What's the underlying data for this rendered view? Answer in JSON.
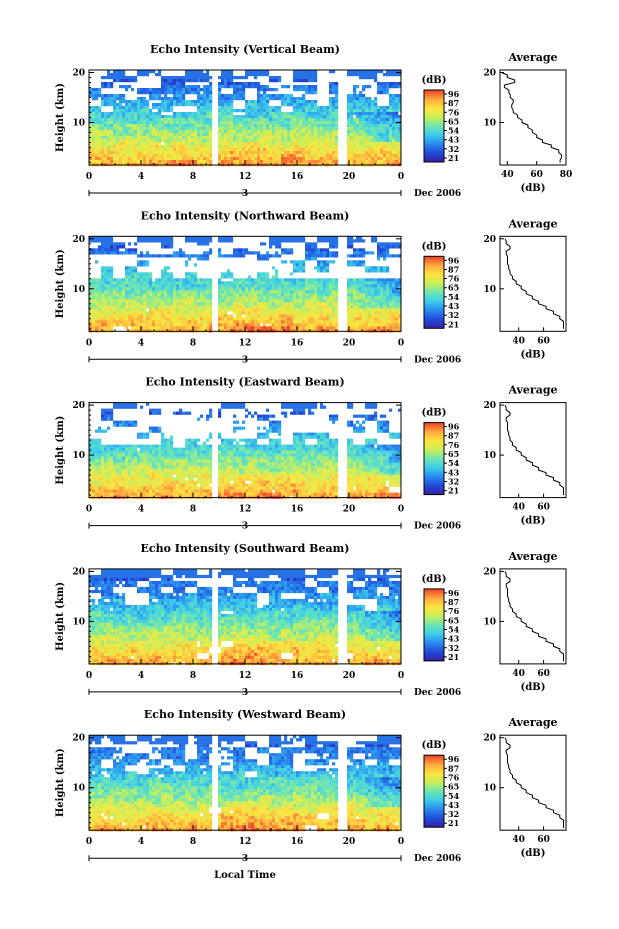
{
  "figure": {
    "xlabel": "Local Time",
    "date_label": "Dec 2006",
    "day_label": "3",
    "height_label": "Height (km)",
    "colorbar_unit": "(dB)",
    "average_title": "Average",
    "average_xlabel": "(dB)"
  },
  "chart_data": [
    {
      "type": "heatmap",
      "title": "Echo Intensity (Vertical Beam)",
      "xlabel": "Local Time",
      "ylabel": "Height (km)",
      "x_ticks": [
        "0",
        "4",
        "8",
        "12",
        "16",
        "20",
        "0"
      ],
      "x_range": [
        0,
        24
      ],
      "y_ticks": [
        "20",
        "10"
      ],
      "y_range": [
        1.5,
        20.5
      ],
      "gaps_hours": [
        [
          9.45,
          9.75
        ],
        [
          19.2,
          19.6
        ]
      ],
      "colorbar": {
        "unit": "(dB)",
        "ticks": [
          "96",
          "87",
          "76",
          "65",
          "54",
          "43",
          "32",
          "21"
        ],
        "range": [
          21,
          98
        ]
      },
      "profile": {
        "height_km": [
          2,
          3,
          4,
          5,
          6,
          7,
          8,
          9,
          10,
          11,
          12,
          13,
          14,
          15,
          16,
          17,
          18,
          19,
          20
        ],
        "average_db": [
          76,
          77,
          75,
          70,
          64,
          60,
          57,
          54,
          50,
          47,
          44,
          43,
          44,
          42,
          41,
          38,
          45,
          40,
          36
        ],
        "xlim": [
          35,
          80
        ],
        "x_ticks": [
          "40",
          "60",
          "80"
        ],
        "y_ticks": [
          "20",
          "10"
        ]
      },
      "scene": {
        "clear_top": 0.1,
        "clear_top_peak": 0.15,
        "band": 0.62,
        "band_alt": 17,
        "gap_bot": 13,
        "gap_top": 15.5,
        "floor_gap": 0.04
      }
    },
    {
      "type": "heatmap",
      "title": "Echo Intensity (Northward Beam)",
      "xlabel": "Local Time",
      "ylabel": "Height (km)",
      "x_ticks": [
        "0",
        "4",
        "8",
        "12",
        "16",
        "20",
        "0"
      ],
      "x_range": [
        0,
        24
      ],
      "y_ticks": [
        "20",
        "10"
      ],
      "y_range": [
        1.5,
        20.5
      ],
      "gaps_hours": [
        [
          9.45,
          9.75
        ],
        [
          19.2,
          19.6
        ]
      ],
      "colorbar": {
        "unit": "(dB)",
        "ticks": [
          "96",
          "87",
          "76",
          "65",
          "54",
          "43",
          "32",
          "21"
        ],
        "range": [
          21,
          98
        ]
      },
      "profile": {
        "height_km": [
          2,
          3,
          4,
          5,
          6,
          7,
          8,
          9,
          10,
          11,
          12,
          13,
          14,
          15,
          16,
          17,
          18,
          19,
          20
        ],
        "average_db": [
          76,
          76,
          73,
          68,
          62,
          56,
          51,
          46,
          42,
          38,
          35,
          33,
          32,
          31,
          31,
          30,
          33,
          30,
          29
        ],
        "xlim": [
          25,
          78
        ],
        "x_ticks": [
          "40",
          "60"
        ],
        "y_ticks": [
          "20",
          "10"
        ]
      },
      "scene": {
        "clear_top": 0.8,
        "clear_top_peak": 0.85,
        "band": 0.55,
        "band_alt": 17,
        "gap_bot": 12,
        "gap_top": 16.5,
        "floor_gap": 0.1
      }
    },
    {
      "type": "heatmap",
      "title": "Echo Intensity (Eastward Beam)",
      "xlabel": "Local Time",
      "ylabel": "Height (km)",
      "x_ticks": [
        "0",
        "4",
        "8",
        "12",
        "16",
        "20",
        "0"
      ],
      "x_range": [
        0,
        24
      ],
      "y_ticks": [
        "20",
        "10"
      ],
      "y_range": [
        1.5,
        20.5
      ],
      "gaps_hours": [
        [
          9.45,
          9.75
        ],
        [
          19.2,
          19.6
        ]
      ],
      "colorbar": {
        "unit": "(dB)",
        "ticks": [
          "96",
          "87",
          "76",
          "65",
          "54",
          "43",
          "32",
          "21"
        ],
        "range": [
          21,
          98
        ]
      },
      "profile": {
        "height_km": [
          2,
          3,
          4,
          5,
          6,
          7,
          8,
          9,
          10,
          11,
          12,
          13,
          14,
          15,
          16,
          17,
          18,
          19,
          20
        ],
        "average_db": [
          76,
          76,
          73,
          68,
          62,
          56,
          51,
          46,
          42,
          38,
          35,
          33,
          32,
          31,
          31,
          30,
          33,
          30,
          29
        ],
        "xlim": [
          25,
          78
        ],
        "x_ticks": [
          "40",
          "60"
        ],
        "y_ticks": [
          "20",
          "10"
        ]
      },
      "scene": {
        "clear_top": 0.6,
        "clear_top_peak": 0.7,
        "band": 0.3,
        "band_alt": 17,
        "gap_bot": 12,
        "gap_top": 16.5,
        "floor_gap": 0.1
      }
    },
    {
      "type": "heatmap",
      "title": "Echo Intensity (Southward Beam)",
      "xlabel": "Local Time",
      "ylabel": "Height (km)",
      "x_ticks": [
        "0",
        "4",
        "8",
        "12",
        "16",
        "20",
        "0"
      ],
      "x_range": [
        0,
        24
      ],
      "y_ticks": [
        "20",
        "10"
      ],
      "y_range": [
        1.5,
        20.5
      ],
      "gaps_hours": [
        [
          9.45,
          9.75
        ],
        [
          19.2,
          19.6
        ]
      ],
      "colorbar": {
        "unit": "(dB)",
        "ticks": [
          "96",
          "87",
          "76",
          "65",
          "54",
          "43",
          "32",
          "21"
        ],
        "range": [
          21,
          98
        ]
      },
      "profile": {
        "height_km": [
          2,
          3,
          4,
          5,
          6,
          7,
          8,
          9,
          10,
          11,
          12,
          13,
          14,
          15,
          16,
          17,
          18,
          19,
          20
        ],
        "average_db": [
          76,
          76,
          73,
          68,
          62,
          56,
          51,
          46,
          42,
          38,
          35,
          33,
          32,
          31,
          31,
          30,
          33,
          30,
          29
        ],
        "xlim": [
          25,
          78
        ],
        "x_ticks": [
          "40",
          "60"
        ],
        "y_ticks": [
          "20",
          "10"
        ]
      },
      "scene": {
        "clear_top": 0.15,
        "clear_top_peak": 0.25,
        "band": 0.72,
        "band_alt": 17.3,
        "gap_bot": 12,
        "gap_top": 16.7,
        "floor_gap": 0.1
      }
    },
    {
      "type": "heatmap",
      "title": "Echo Intensity (Westward Beam)",
      "xlabel": "Local Time",
      "ylabel": "Height (km)",
      "x_ticks": [
        "0",
        "4",
        "8",
        "12",
        "16",
        "20",
        "0"
      ],
      "x_range": [
        0,
        24
      ],
      "y_ticks": [
        "20",
        "10"
      ],
      "y_range": [
        1.5,
        20.5
      ],
      "gaps_hours": [
        [
          9.45,
          9.75
        ],
        [
          19.2,
          19.6
        ]
      ],
      "colorbar": {
        "unit": "(dB)",
        "ticks": [
          "96",
          "87",
          "76",
          "65",
          "54",
          "43",
          "32",
          "21"
        ],
        "range": [
          21,
          98
        ]
      },
      "profile": {
        "height_km": [
          2,
          3,
          4,
          5,
          6,
          7,
          8,
          9,
          10,
          11,
          12,
          13,
          14,
          15,
          16,
          17,
          18,
          19,
          20
        ],
        "average_db": [
          76,
          76,
          73,
          68,
          62,
          56,
          51,
          46,
          42,
          38,
          35,
          33,
          32,
          31,
          31,
          30,
          33,
          30,
          29
        ],
        "xlim": [
          25,
          78
        ],
        "x_ticks": [
          "40",
          "60"
        ],
        "y_ticks": [
          "20",
          "10"
        ]
      },
      "scene": {
        "clear_top": 0.15,
        "clear_top_peak": 0.25,
        "band": 0.72,
        "band_alt": 17.3,
        "gap_bot": 12,
        "gap_top": 16.7,
        "floor_gap": 0.1
      }
    }
  ]
}
